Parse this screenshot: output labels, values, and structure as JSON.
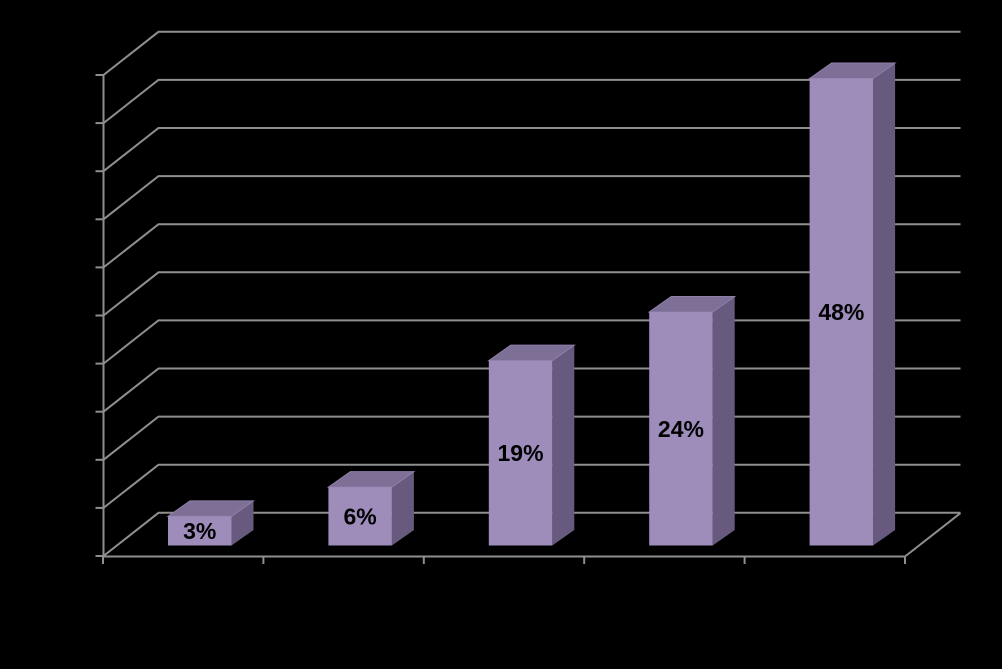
{
  "chart_data": {
    "type": "bar",
    "style": "3d-column",
    "title": "",
    "values": [
      3,
      6,
      19,
      24,
      48
    ],
    "data_labels": [
      "3%",
      "6%",
      "19%",
      "24%",
      "48%"
    ],
    "series_count": 1,
    "ylim": [
      0,
      50
    ],
    "y_tick_step": 5,
    "y_gridline_levels": 11,
    "x_tick_count": 6,
    "axis_tick_labels_visible": false,
    "legend": "none",
    "grid": true,
    "colors": {
      "background": "#000000",
      "bar_front": "#9e8cbb",
      "bar_top": "#7e6f97",
      "bar_side": "#685a7e",
      "gridline": "#8f8f8f",
      "axis": "#8f8f8f",
      "data_label": "#000000"
    }
  }
}
